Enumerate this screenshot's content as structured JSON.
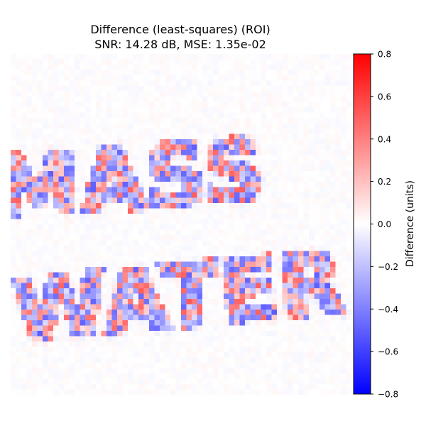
{
  "chart_data": {
    "type": "heatmap",
    "title": "Difference (least-squares) (ROI)",
    "subtitle": "SNR: 14.28 dB, MSE: 1.35e-02",
    "xlabel": "",
    "ylabel": "",
    "axes_visible": false,
    "grid": false,
    "grid_shape": [
      64,
      64
    ],
    "colormap": "bwr",
    "colorbar": {
      "label": "Difference (units)",
      "vmin": -0.8,
      "vmax": 0.8,
      "ticks": [
        0.8,
        0.6,
        0.4,
        0.2,
        0.0,
        -0.2,
        -0.4,
        -0.6,
        -0.8
      ],
      "tick_labels": [
        "0.8",
        "0.6",
        "0.4",
        "0.2",
        "0.0",
        "−0.2",
        "−0.4",
        "−0.6",
        "−0.8"
      ]
    },
    "text_in_image": [
      "MASS",
      "WATER"
    ],
    "colors": {
      "negative": "#0000ff",
      "zero": "#ffffff",
      "positive": "#ff0000"
    }
  }
}
